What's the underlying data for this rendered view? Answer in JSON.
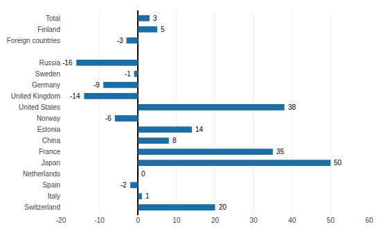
{
  "chart_data": {
    "type": "bar",
    "orientation": "horizontal",
    "categories": [
      "Total",
      "Finland",
      "Foreign countries",
      null,
      "Russia",
      "Sweden",
      "Germany",
      "United Kingdom",
      "United States",
      "Norway",
      "Estonia",
      "China",
      "France",
      "Japan",
      "Netherlands",
      "Spain",
      "Italy",
      "Switzerland"
    ],
    "values": [
      3,
      5,
      -3,
      null,
      -16,
      -1,
      -9,
      -14,
      38,
      -6,
      14,
      8,
      35,
      50,
      0,
      -2,
      1,
      20
    ],
    "color": "#1a6fa8",
    "xlim": [
      -20,
      60
    ],
    "xticks": [
      -20,
      -10,
      0,
      10,
      20,
      30,
      40,
      50,
      60
    ],
    "grid": true,
    "data_labels": true
  }
}
